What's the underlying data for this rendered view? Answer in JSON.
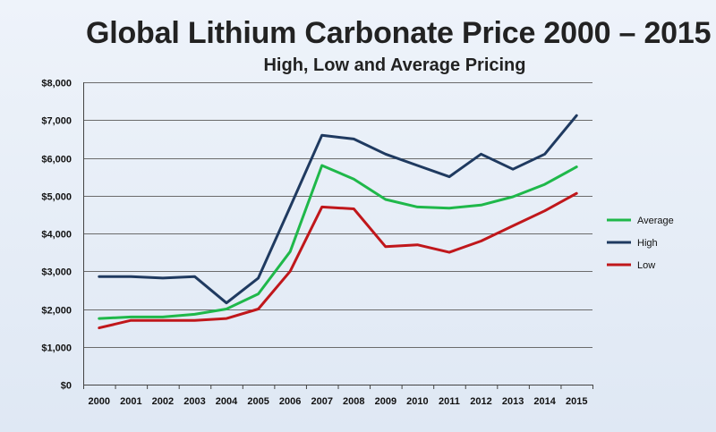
{
  "chart_data": {
    "type": "line",
    "title": "Global Lithium Carbonate Price 2000 – 2015",
    "subtitle": "High,  Low and Average Pricing",
    "xlabel": "",
    "ylabel": "",
    "ylim": [
      0,
      8000
    ],
    "yticks": [
      0,
      1000,
      2000,
      3000,
      4000,
      5000,
      6000,
      7000,
      8000
    ],
    "ytick_labels": [
      "$0",
      "$1,000",
      "$2,000",
      "$3,000",
      "$4,000",
      "$5,000",
      "$6,000",
      "$7,000",
      "$8,000"
    ],
    "categories": [
      "2000",
      "2001",
      "2002",
      "2003",
      "2004",
      "2005",
      "2006",
      "2007",
      "2008",
      "2009",
      "2010",
      "2011",
      "2012",
      "2013",
      "2014",
      "2015"
    ],
    "grid": true,
    "legend_position": "right",
    "series": [
      {
        "name": "Average",
        "color": "#1fb84a",
        "values": [
          1750,
          1790,
          1790,
          1860,
          2000,
          2400,
          3520,
          5800,
          5440,
          4900,
          4700,
          4670,
          4750,
          4970,
          5300,
          5760
        ]
      },
      {
        "name": "High",
        "color": "#1f3a60",
        "values": [
          2860,
          2860,
          2820,
          2860,
          2160,
          2820,
          4700,
          6600,
          6500,
          6100,
          5800,
          5500,
          6100,
          5700,
          6100,
          7120
        ]
      },
      {
        "name": "Low",
        "color": "#c0171b",
        "values": [
          1500,
          1700,
          1700,
          1700,
          1750,
          2000,
          3000,
          4700,
          4650,
          3650,
          3700,
          3500,
          3800,
          4200,
          4600,
          5060
        ]
      }
    ]
  }
}
